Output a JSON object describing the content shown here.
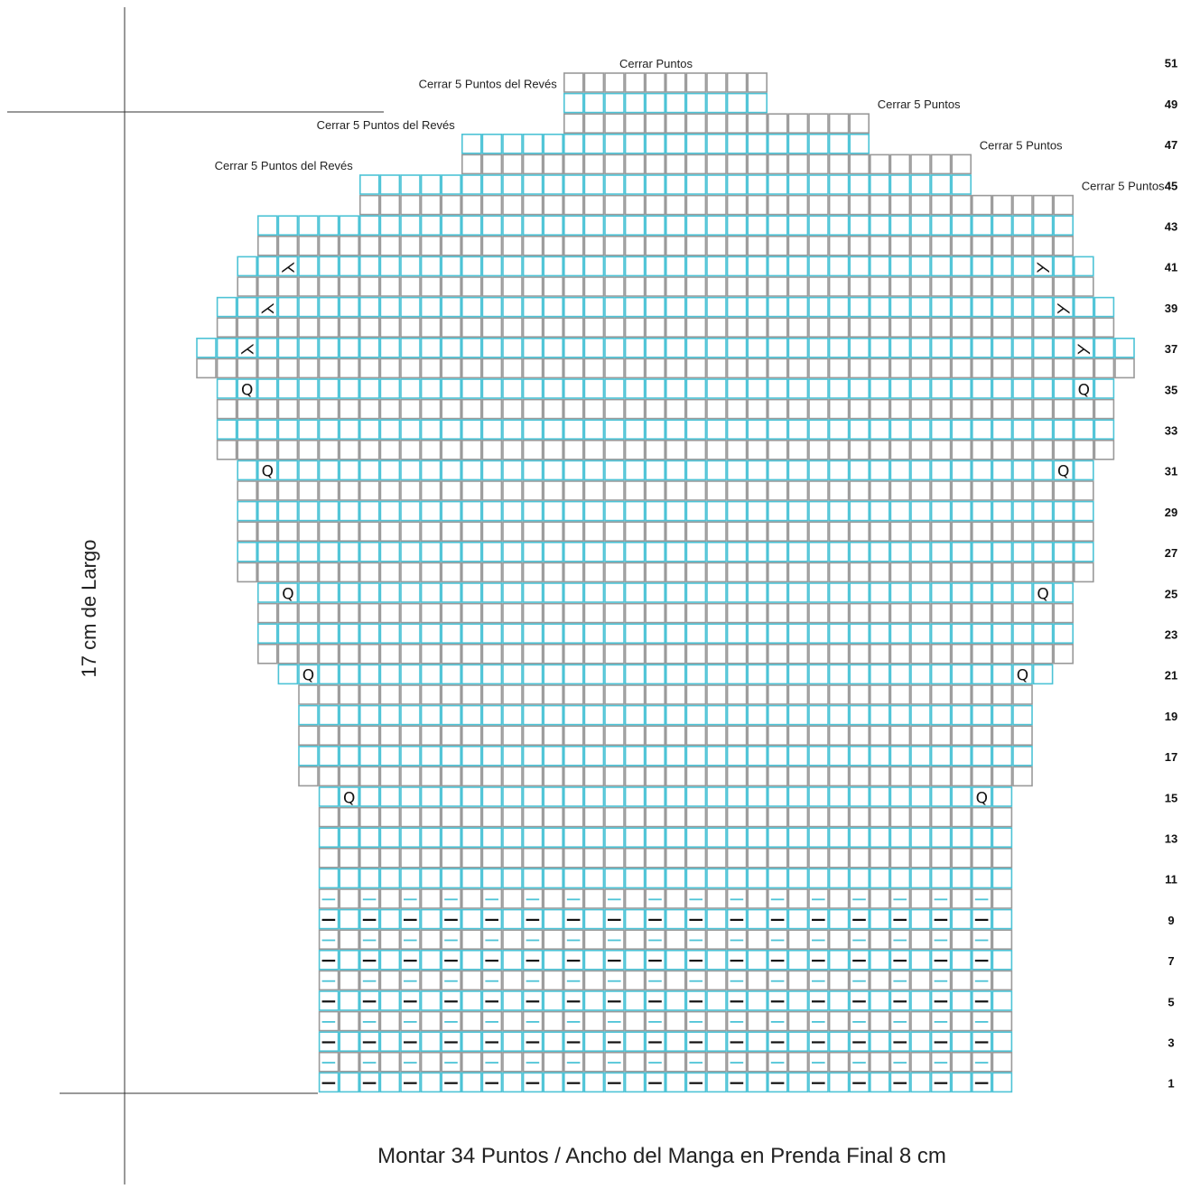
{
  "labels": {
    "vertical_measure": "17 cm de Largo",
    "bottom_caption": "Montar 34 Puntos / Ancho del Manga en Prenda Final 8 cm",
    "bind_off": "Cerrar Puntos",
    "bind_off_5": "Cerrar 5 Puntos",
    "bind_off_5_purl": "Cerrar 5 Puntos del Revés"
  },
  "row_numbers": [
    "1",
    "3",
    "5",
    "7",
    "9",
    "11",
    "13",
    "15",
    "17",
    "19",
    "21",
    "23",
    "25",
    "27",
    "29",
    "31",
    "33",
    "35",
    "37",
    "39",
    "41",
    "43",
    "45",
    "47",
    "49",
    "51"
  ],
  "colors": {
    "right_side_row": "#4dc3d6",
    "wrong_side_row": "#9a9a9a",
    "symbol": "#111111",
    "axis_line": "#333333"
  },
  "chart_data": {
    "type": "table",
    "title": "",
    "cast_on_stitches": 34,
    "rows_total": 50,
    "symbols": {
      "purl": "—",
      "make_one": "Q",
      "decrease": "X",
      "bind_off": ""
    },
    "rows": [
      {
        "row": 1,
        "start": 7,
        "end": 40,
        "pattern": "purl-alt"
      },
      {
        "row": 2,
        "start": 7,
        "end": 40,
        "pattern": "purl-alt"
      },
      {
        "row": 3,
        "start": 7,
        "end": 40,
        "pattern": "purl-alt"
      },
      {
        "row": 4,
        "start": 7,
        "end": 40,
        "pattern": "purl-alt"
      },
      {
        "row": 5,
        "start": 7,
        "end": 40,
        "pattern": "purl-alt"
      },
      {
        "row": 6,
        "start": 7,
        "end": 40,
        "pattern": "purl-alt"
      },
      {
        "row": 7,
        "start": 7,
        "end": 40,
        "pattern": "purl-alt"
      },
      {
        "row": 8,
        "start": 7,
        "end": 40,
        "pattern": "purl-alt"
      },
      {
        "row": 9,
        "start": 7,
        "end": 40,
        "pattern": "purl-alt"
      },
      {
        "row": 10,
        "start": 7,
        "end": 40,
        "pattern": "purl-alt"
      },
      {
        "row": 11,
        "start": 7,
        "end": 40
      },
      {
        "row": 12,
        "start": 7,
        "end": 40
      },
      {
        "row": 13,
        "start": 7,
        "end": 40
      },
      {
        "row": 14,
        "start": 7,
        "end": 40
      },
      {
        "row": 15,
        "start": 7,
        "end": 40,
        "marks": [
          {
            "col": 8,
            "symbol": "Q"
          },
          {
            "col": 39,
            "symbol": "Q"
          }
        ]
      },
      {
        "row": 16,
        "start": 6,
        "end": 41
      },
      {
        "row": 17,
        "start": 6,
        "end": 41
      },
      {
        "row": 18,
        "start": 6,
        "end": 41
      },
      {
        "row": 19,
        "start": 6,
        "end": 41
      },
      {
        "row": 20,
        "start": 6,
        "end": 41
      },
      {
        "row": 21,
        "start": 5,
        "end": 42,
        "marks": [
          {
            "col": 6,
            "symbol": "Q"
          },
          {
            "col": 41,
            "symbol": "Q"
          }
        ]
      },
      {
        "row": 22,
        "start": 4,
        "end": 43
      },
      {
        "row": 23,
        "start": 4,
        "end": 43
      },
      {
        "row": 24,
        "start": 4,
        "end": 43
      },
      {
        "row": 25,
        "start": 4,
        "end": 43,
        "marks": [
          {
            "col": 5,
            "symbol": "Q"
          },
          {
            "col": 42,
            "symbol": "Q"
          }
        ]
      },
      {
        "row": 26,
        "start": 3,
        "end": 44
      },
      {
        "row": 27,
        "start": 3,
        "end": 44
      },
      {
        "row": 28,
        "start": 3,
        "end": 44
      },
      {
        "row": 29,
        "start": 3,
        "end": 44
      },
      {
        "row": 30,
        "start": 3,
        "end": 44
      },
      {
        "row": 31,
        "start": 3,
        "end": 44,
        "marks": [
          {
            "col": 4,
            "symbol": "Q"
          },
          {
            "col": 43,
            "symbol": "Q"
          }
        ]
      },
      {
        "row": 32,
        "start": 2,
        "end": 45
      },
      {
        "row": 33,
        "start": 2,
        "end": 45
      },
      {
        "row": 34,
        "start": 2,
        "end": 45
      },
      {
        "row": 35,
        "start": 2,
        "end": 45,
        "marks": [
          {
            "col": 3,
            "symbol": "Q"
          },
          {
            "col": 44,
            "symbol": "Q"
          }
        ]
      },
      {
        "row": 36,
        "start": 1,
        "end": 46
      },
      {
        "row": 37,
        "start": 1,
        "end": 46,
        "marks": [
          {
            "col": 3,
            "symbol": "X"
          },
          {
            "col": 44,
            "symbol": "X"
          }
        ]
      },
      {
        "row": 38,
        "start": 2,
        "end": 45
      },
      {
        "row": 39,
        "start": 2,
        "end": 45,
        "marks": [
          {
            "col": 4,
            "symbol": "X"
          },
          {
            "col": 43,
            "symbol": "X"
          }
        ]
      },
      {
        "row": 40,
        "start": 3,
        "end": 44
      },
      {
        "row": 41,
        "start": 3,
        "end": 44,
        "marks": [
          {
            "col": 5,
            "symbol": "X"
          },
          {
            "col": 42,
            "symbol": "X"
          }
        ]
      },
      {
        "row": 42,
        "start": 4,
        "end": 43
      },
      {
        "row": 43,
        "start": 4,
        "end": 43
      },
      {
        "row": 44,
        "start": 9,
        "end": 43,
        "note": "Cerrar 5 Puntos"
      },
      {
        "row": 45,
        "start": 9,
        "end": 38,
        "note": "Cerrar 5 Puntos del Revés"
      },
      {
        "row": 46,
        "start": 14,
        "end": 38,
        "note": "Cerrar 5 Puntos"
      },
      {
        "row": 47,
        "start": 14,
        "end": 33,
        "note": "Cerrar 5 Puntos del Revés"
      },
      {
        "row": 48,
        "start": 19,
        "end": 33,
        "note": "Cerrar 5 Puntos"
      },
      {
        "row": 49,
        "start": 19,
        "end": 28,
        "note": "Cerrar 5 Puntos del Revés"
      },
      {
        "row": 50,
        "start": 19,
        "end": 28,
        "note": "Cerrar Puntos"
      }
    ]
  }
}
